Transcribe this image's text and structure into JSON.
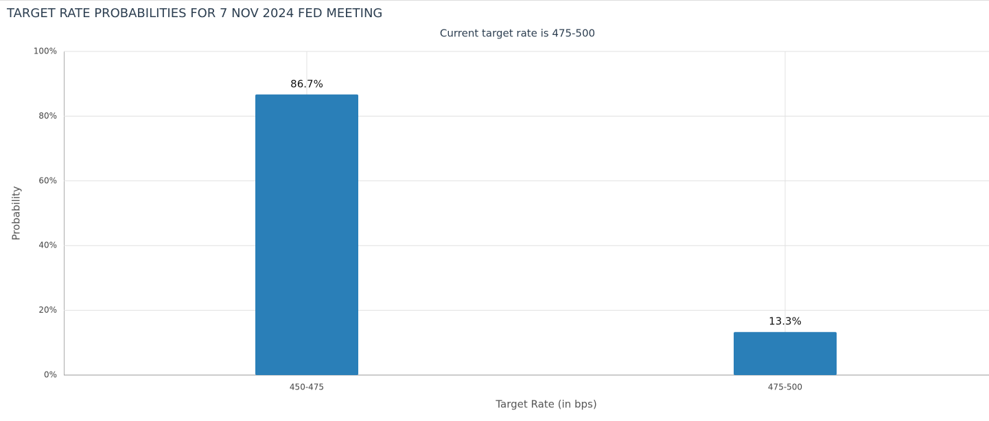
{
  "chart_data": {
    "type": "bar",
    "title": "TARGET RATE PROBABILITIES FOR 7 NOV 2024 FED MEETING",
    "subtitle": "Current target rate is 475-500",
    "x_label": "Target Rate (in bps)",
    "y_label": "Probability",
    "categories": [
      "450-475",
      "475-500"
    ],
    "values": [
      86.7,
      13.3
    ],
    "value_labels": [
      "86.7%",
      "13.3%"
    ],
    "color": "#2a7fb8",
    "ylim": [
      0,
      100
    ],
    "yticks": [
      {
        "value": 0,
        "label": "0%"
      },
      {
        "value": 20,
        "label": "20%"
      },
      {
        "value": 40,
        "label": "40%"
      },
      {
        "value": 60,
        "label": "60%"
      },
      {
        "value": 80,
        "label": "80%"
      },
      {
        "value": 100,
        "label": "100%"
      }
    ],
    "grid": true
  }
}
